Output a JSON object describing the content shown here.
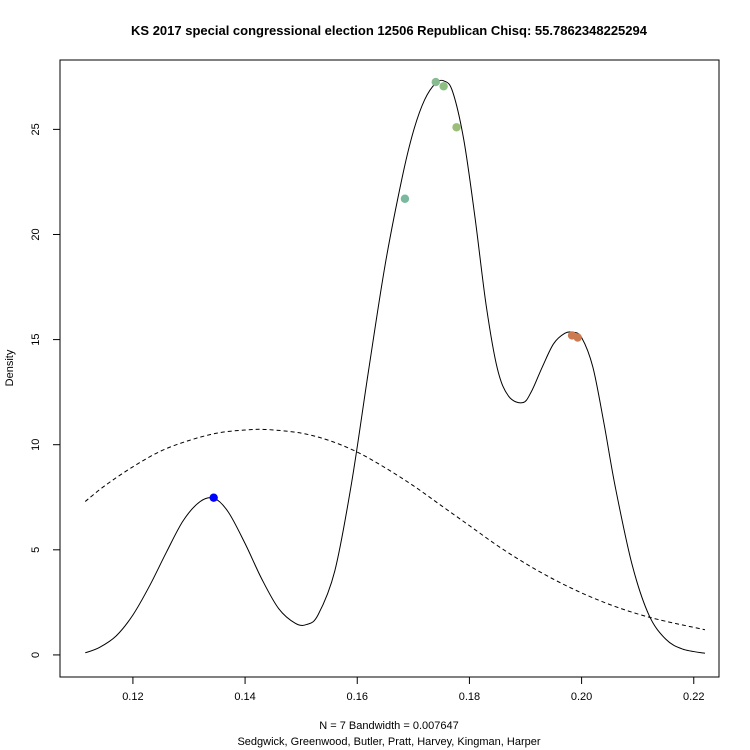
{
  "chart_data": {
    "type": "line",
    "title": "KS 2017 special congressional election 12506 Republican Chisq: 55.7862348225294",
    "xlabel": "N = 7   Bandwidth = 0.007647",
    "subtitle": "Sedgwick, Greenwood, Butler, Pratt, Harvey, Kingman, Harper",
    "ylabel": "Density",
    "xlim": [
      0.107,
      0.2245
    ],
    "ylim": [
      -1.05,
      28.3
    ],
    "x_ticks": [
      0.12,
      0.14,
      0.16,
      0.18,
      0.2,
      0.22
    ],
    "y_ticks": [
      0,
      5,
      10,
      15,
      20,
      25
    ],
    "x_tick_labels": [
      "0.12",
      "0.14",
      "0.16",
      "0.18",
      "0.20",
      "0.22"
    ],
    "y_tick_labels": [
      "0",
      "5",
      "10",
      "15",
      "20",
      "25"
    ],
    "series": [
      {
        "style": "solid",
        "color": "#000000",
        "x": [
          0.1115,
          0.114,
          0.117,
          0.12,
          0.123,
          0.126,
          0.129,
          0.132,
          0.1345,
          0.137,
          0.14,
          0.143,
          0.146,
          0.149,
          0.151,
          0.153,
          0.156,
          0.159,
          0.162,
          0.165,
          0.168,
          0.17,
          0.172,
          0.174,
          0.1755,
          0.177,
          0.179,
          0.181,
          0.183,
          0.185,
          0.187,
          0.1895,
          0.191,
          0.193,
          0.195,
          0.197,
          0.1985,
          0.2,
          0.202,
          0.204,
          0.206,
          0.209,
          0.212,
          0.215,
          0.218,
          0.222
        ],
        "y": [
          0.1,
          0.35,
          0.9,
          1.9,
          3.3,
          4.9,
          6.4,
          7.3,
          7.45,
          6.8,
          5.3,
          3.6,
          2.2,
          1.5,
          1.45,
          1.9,
          4.0,
          8.2,
          13.5,
          18.6,
          22.7,
          24.9,
          26.4,
          27.2,
          27.3,
          26.8,
          24.5,
          20.8,
          16.6,
          13.6,
          12.3,
          12.0,
          12.5,
          13.7,
          14.8,
          15.3,
          15.35,
          15.1,
          13.7,
          11.0,
          8.0,
          4.3,
          1.9,
          0.75,
          0.28,
          0.08
        ]
      },
      {
        "style": "dashed",
        "color": "#000000",
        "x": [
          0.1115,
          0.115,
          0.12,
          0.125,
          0.13,
          0.135,
          0.14,
          0.144,
          0.15,
          0.155,
          0.16,
          0.165,
          0.17,
          0.175,
          0.18,
          0.185,
          0.19,
          0.195,
          0.2,
          0.205,
          0.21,
          0.215,
          0.222
        ],
        "y": [
          7.3,
          8.05,
          8.95,
          9.7,
          10.2,
          10.55,
          10.7,
          10.72,
          10.55,
          10.2,
          9.65,
          8.9,
          8.05,
          7.1,
          6.15,
          5.2,
          4.35,
          3.6,
          2.95,
          2.4,
          1.95,
          1.6,
          1.2
        ]
      }
    ],
    "points": [
      {
        "x": 0.1344,
        "y": 7.48,
        "color": "#0000ff"
      },
      {
        "x": 0.1685,
        "y": 21.7,
        "color": "#7ab8a0"
      },
      {
        "x": 0.174,
        "y": 27.25,
        "color": "#88bb8f"
      },
      {
        "x": 0.1754,
        "y": 27.05,
        "color": "#8ebf82"
      },
      {
        "x": 0.1777,
        "y": 25.1,
        "color": "#9bbf78"
      },
      {
        "x": 0.1983,
        "y": 15.2,
        "color": "#cc7a50"
      },
      {
        "x": 0.1993,
        "y": 15.1,
        "color": "#cc7a50"
      }
    ]
  }
}
